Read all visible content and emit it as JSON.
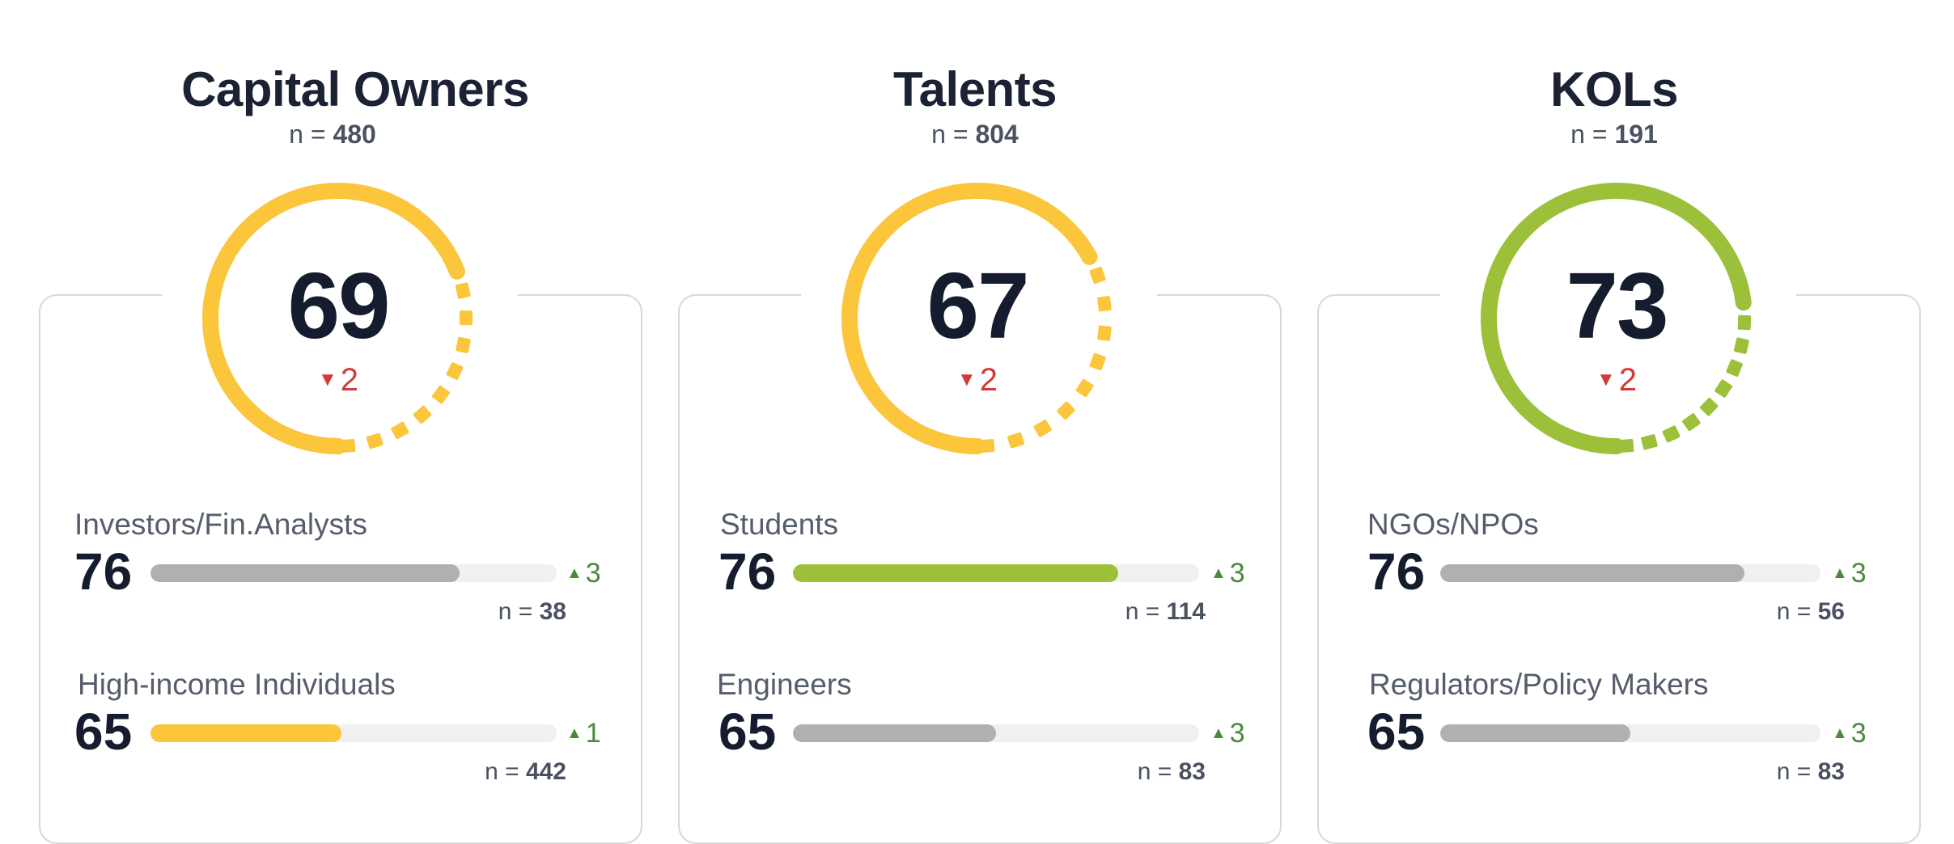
{
  "colors": {
    "yellow": "#fbc53c",
    "green": "#9cc03a",
    "gray_bar": "#b0b0b0",
    "track": "#f0f0f0",
    "down": "#d33a3a",
    "up": "#4a8a3a"
  },
  "groups": [
    {
      "title": "Capital Owners",
      "n_label": "n = ",
      "n_value": "480",
      "score": "69",
      "score_value": 69,
      "change_icon": "triangle-down-icon",
      "change_glyph": "▼",
      "change": "2",
      "gauge_color": "#fbc53c",
      "segments": [
        {
          "label": "Investors/Fin.Analysts",
          "score": "76",
          "bar_fraction": 0.76,
          "bar_color": "#b0b0b0",
          "change_icon": "triangle-up-icon",
          "change_glyph": "▲",
          "change": "3",
          "n_label": "n = ",
          "n_value": "38"
        },
        {
          "label": "High-income Individuals",
          "score": "65",
          "bar_fraction": 0.47,
          "bar_color": "#fbc53c",
          "change_icon": "triangle-up-icon",
          "change_glyph": "▲",
          "change": "1",
          "n_label": "n = ",
          "n_value": "442"
        }
      ]
    },
    {
      "title": "Talents",
      "n_label": "n = ",
      "n_value": "804",
      "score": "67",
      "score_value": 67,
      "change_icon": "triangle-down-icon",
      "change_glyph": "▼",
      "change": "2",
      "gauge_color": "#fbc53c",
      "segments": [
        {
          "label": "Students",
          "score": "76",
          "bar_fraction": 0.8,
          "bar_color": "#9cc03a",
          "change_icon": "triangle-up-icon",
          "change_glyph": "▲",
          "change": "3",
          "n_label": "n = ",
          "n_value": "114"
        },
        {
          "label": "Engineers",
          "score": "65",
          "bar_fraction": 0.5,
          "bar_color": "#b0b0b0",
          "change_icon": "triangle-up-icon",
          "change_glyph": "▲",
          "change": "3",
          "n_label": "n = ",
          "n_value": "83"
        }
      ]
    },
    {
      "title": "KOLs",
      "n_label": "n = ",
      "n_value": "191",
      "score": "73",
      "score_value": 73,
      "change_icon": "triangle-down-icon",
      "change_glyph": "▼",
      "change": "2",
      "gauge_color": "#9cc03a",
      "segments": [
        {
          "label": "NGOs/NPOs",
          "score": "76",
          "bar_fraction": 0.8,
          "bar_color": "#b0b0b0",
          "change_icon": "triangle-up-icon",
          "change_glyph": "▲",
          "change": "3",
          "n_label": "n = ",
          "n_value": "56"
        },
        {
          "label": "Regulators/Policy Makers",
          "score": "65",
          "bar_fraction": 0.5,
          "bar_color": "#b0b0b0",
          "change_icon": "triangle-up-icon",
          "change_glyph": "▲",
          "change": "3",
          "n_label": "n = ",
          "n_value": "83"
        }
      ]
    }
  ]
}
